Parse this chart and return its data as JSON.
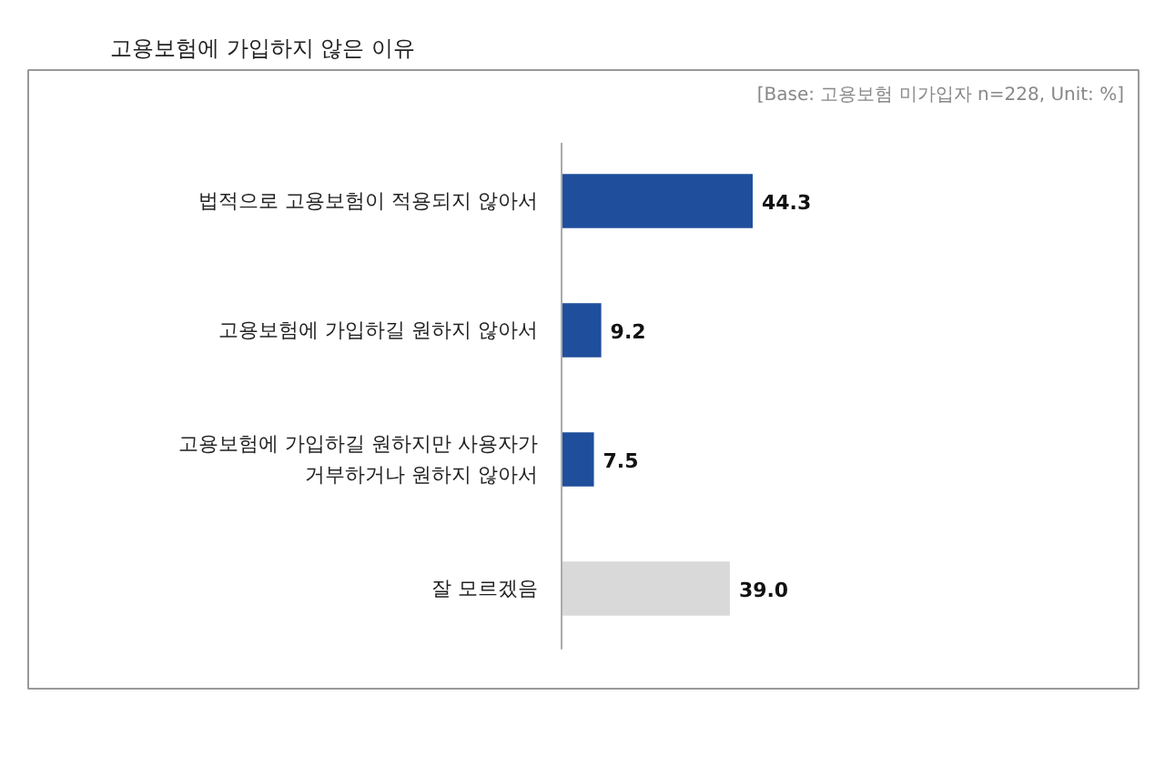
{
  "chart_data": {
    "type": "bar",
    "orientation": "horizontal",
    "title": "고용보험에 가입하지 않은 이유",
    "subtitle": "[Base: 고용보험 미가입자 n=228, Unit: %]",
    "categories": [
      "법적으로 고용보험이 적용되지 않아서",
      "고용보험에 가입하길 원하지 않아서",
      "고용보험에 가입하길 원하지만 사용자가\n거부하거나 원하지 않아서",
      "잘 모르겠음"
    ],
    "values": [
      44.3,
      9.2,
      7.5,
      39.0
    ],
    "colors": [
      "#1f4e9c",
      "#1f4e9c",
      "#1f4e9c",
      "#d9d9d9"
    ],
    "value_labels": [
      "44.3",
      "9.2",
      "7.5",
      "39.0"
    ],
    "grid": false
  }
}
